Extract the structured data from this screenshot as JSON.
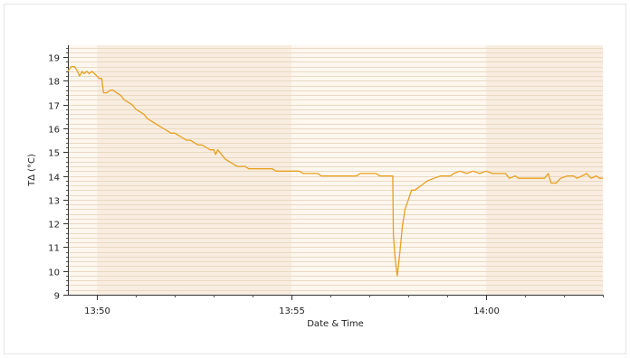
{
  "chart_data": {
    "type": "line",
    "xlabel": "Date & Time",
    "ylabel": "T∆ (°C)",
    "ylim": [
      9,
      19.5
    ],
    "x_range": [
      "13:49:15",
      "14:03:00"
    ],
    "x_ticks": [
      "13:50",
      "13:55",
      "14:00"
    ],
    "y_ticks": [
      "9",
      "10",
      "11",
      "12",
      "13",
      "14",
      "15",
      "16",
      "17",
      "18",
      "19"
    ],
    "grid": "horizontal minor lines, alternating shaded vertical bands",
    "colors": {
      "line": "#e8a020",
      "band_dark": "#f8ede0",
      "band_light": "#fdf7ef",
      "grid": "#ead9c2"
    },
    "series": [
      {
        "points": [
          [
            "13:49:15",
            18.4
          ],
          [
            "13:49:20",
            18.6
          ],
          [
            "13:49:25",
            18.6
          ],
          [
            "13:49:30",
            18.4
          ],
          [
            "13:49:33",
            18.2
          ],
          [
            "13:49:37",
            18.4
          ],
          [
            "13:49:40",
            18.3
          ],
          [
            "13:49:44",
            18.4
          ],
          [
            "13:49:48",
            18.3
          ],
          [
            "13:49:52",
            18.4
          ],
          [
            "13:49:56",
            18.3
          ],
          [
            "13:50:00",
            18.2
          ],
          [
            "13:50:03",
            18.1
          ],
          [
            "13:50:07",
            18.1
          ],
          [
            "13:50:10",
            17.5
          ],
          [
            "13:50:15",
            17.5
          ],
          [
            "13:50:20",
            17.6
          ],
          [
            "13:50:25",
            17.6
          ],
          [
            "13:50:30",
            17.5
          ],
          [
            "13:50:36",
            17.4
          ],
          [
            "13:50:42",
            17.2
          ],
          [
            "13:50:48",
            17.1
          ],
          [
            "13:50:54",
            17.0
          ],
          [
            "13:51:00",
            16.8
          ],
          [
            "13:51:06",
            16.7
          ],
          [
            "13:51:12",
            16.6
          ],
          [
            "13:51:18",
            16.4
          ],
          [
            "13:51:24",
            16.3
          ],
          [
            "13:51:30",
            16.2
          ],
          [
            "13:51:36",
            16.1
          ],
          [
            "13:51:42",
            16.0
          ],
          [
            "13:51:48",
            15.9
          ],
          [
            "13:51:54",
            15.8
          ],
          [
            "13:52:00",
            15.8
          ],
          [
            "13:52:06",
            15.7
          ],
          [
            "13:52:12",
            15.6
          ],
          [
            "13:52:18",
            15.5
          ],
          [
            "13:52:24",
            15.5
          ],
          [
            "13:52:30",
            15.4
          ],
          [
            "13:52:36",
            15.3
          ],
          [
            "13:52:42",
            15.3
          ],
          [
            "13:52:48",
            15.2
          ],
          [
            "13:52:54",
            15.1
          ],
          [
            "13:53:00",
            15.1
          ],
          [
            "13:53:03",
            14.9
          ],
          [
            "13:53:06",
            15.1
          ],
          [
            "13:53:12",
            14.9
          ],
          [
            "13:53:18",
            14.7
          ],
          [
            "13:53:24",
            14.6
          ],
          [
            "13:53:30",
            14.5
          ],
          [
            "13:53:36",
            14.4
          ],
          [
            "13:53:48",
            14.4
          ],
          [
            "13:53:54",
            14.3
          ],
          [
            "13:54:10",
            14.3
          ],
          [
            "13:54:30",
            14.3
          ],
          [
            "13:54:36",
            14.2
          ],
          [
            "13:55:00",
            14.2
          ],
          [
            "13:55:12",
            14.2
          ],
          [
            "13:55:18",
            14.1
          ],
          [
            "13:55:40",
            14.1
          ],
          [
            "13:55:46",
            14.0
          ],
          [
            "13:56:20",
            14.0
          ],
          [
            "13:56:40",
            14.0
          ],
          [
            "13:56:46",
            14.1
          ],
          [
            "13:57:10",
            14.1
          ],
          [
            "13:57:16",
            14.0
          ],
          [
            "13:57:36",
            14.0
          ],
          [
            "13:57:37",
            11.5
          ],
          [
            "13:57:40",
            10.4
          ],
          [
            "13:57:43",
            9.8
          ],
          [
            "13:57:47",
            10.8
          ],
          [
            "13:57:51",
            11.9
          ],
          [
            "13:57:55",
            12.6
          ],
          [
            "13:58:00",
            13.0
          ],
          [
            "13:58:05",
            13.4
          ],
          [
            "13:58:10",
            13.4
          ],
          [
            "13:58:15",
            13.5
          ],
          [
            "13:58:20",
            13.6
          ],
          [
            "13:58:25",
            13.7
          ],
          [
            "13:58:30",
            13.8
          ],
          [
            "13:58:40",
            13.9
          ],
          [
            "13:58:50",
            14.0
          ],
          [
            "13:59:05",
            14.0
          ],
          [
            "13:59:10",
            14.1
          ],
          [
            "13:59:20",
            14.2
          ],
          [
            "13:59:30",
            14.1
          ],
          [
            "13:59:40",
            14.2
          ],
          [
            "13:59:50",
            14.1
          ],
          [
            "14:00:00",
            14.2
          ],
          [
            "14:00:10",
            14.1
          ],
          [
            "14:00:20",
            14.1
          ],
          [
            "14:00:30",
            14.1
          ],
          [
            "14:00:36",
            13.9
          ],
          [
            "14:00:45",
            14.0
          ],
          [
            "14:00:50",
            13.9
          ],
          [
            "14:01:00",
            13.9
          ],
          [
            "14:01:20",
            13.9
          ],
          [
            "14:01:30",
            13.9
          ],
          [
            "14:01:36",
            14.1
          ],
          [
            "14:01:40",
            13.7
          ],
          [
            "14:01:48",
            13.7
          ],
          [
            "14:01:55",
            13.9
          ],
          [
            "14:02:05",
            14.0
          ],
          [
            "14:02:15",
            14.0
          ],
          [
            "14:02:20",
            13.9
          ],
          [
            "14:02:28",
            14.0
          ],
          [
            "14:02:35",
            14.1
          ],
          [
            "14:02:42",
            13.9
          ],
          [
            "14:02:50",
            14.0
          ],
          [
            "14:02:55",
            13.9
          ],
          [
            "14:03:00",
            13.9
          ]
        ]
      }
    ]
  }
}
